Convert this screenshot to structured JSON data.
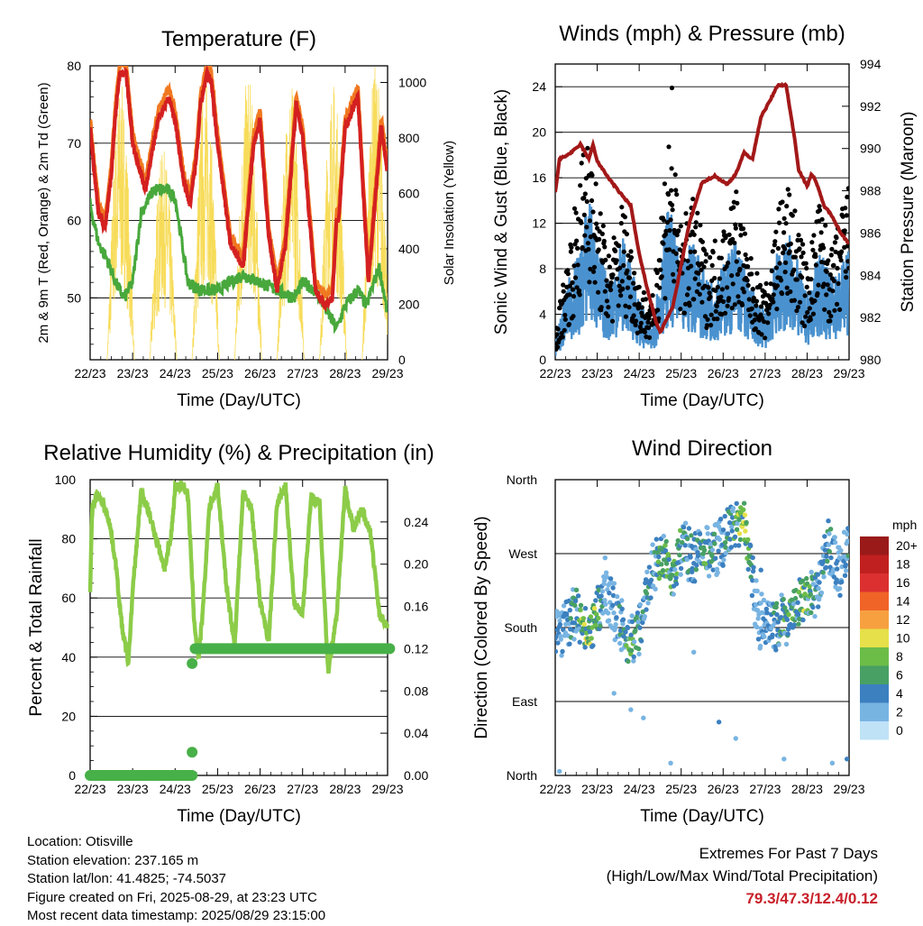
{
  "x_ticks": [
    "22/23",
    "23/23",
    "24/23",
    "25/23",
    "26/23",
    "27/23",
    "28/23",
    "29/23"
  ],
  "xlabel": "Time (Day/UTC)",
  "colors": {
    "temp2m": "#d42020",
    "temp9m": "#f07820",
    "dewpoint": "#48a83c",
    "solar": "#f7dc5a",
    "sonic": "#4a92cf",
    "gust": "#000000",
    "pressure": "#a31818",
    "rh": "#8ccc48",
    "precip": "#48b048",
    "extremes": "#c8202a"
  },
  "charts": {
    "temperature": {
      "title": "Temperature (F)",
      "ylabel": "2m & 9m T (Red, Orange) & 2m Td (Green)",
      "y2label": "Solar Insolation (Yellow)",
      "y_ticks": [
        "50",
        "60",
        "70",
        "80"
      ],
      "y2_ticks": [
        "0",
        "200",
        "400",
        "600",
        "800",
        "1000"
      ]
    },
    "winds": {
      "title": "Winds (mph) & Pressure (mb)",
      "ylabel": "Sonic Wind & Gust (Blue, Black)",
      "y2label": "Station Pressure (Maroon)",
      "y_ticks": [
        "0",
        "4",
        "8",
        "12",
        "16",
        "20",
        "24"
      ],
      "y2_ticks": [
        "980",
        "982",
        "984",
        "986",
        "988",
        "990",
        "992",
        "994"
      ]
    },
    "humidity": {
      "title": "Relative Humidity (%) & Precipitation (in)",
      "ylabel": "Percent & Total Rainfall",
      "y_ticks": [
        "0",
        "20",
        "40",
        "60",
        "80",
        "100"
      ],
      "y2_ticks": [
        "0.00",
        "0.04",
        "0.08",
        "0.12",
        "0.16",
        "0.20",
        "0.24"
      ]
    },
    "direction": {
      "title": "Wind Direction",
      "ylabel": "Direction (Colored By Speed)",
      "y_ticks": [
        "North",
        "East",
        "South",
        "West",
        "North"
      ],
      "legend_title": "mph",
      "legend_labels": [
        "20+",
        "18",
        "16",
        "14",
        "12",
        "10",
        "8",
        "6",
        "4",
        "2",
        "0"
      ],
      "legend_colors": [
        "#9a1a1a",
        "#c02020",
        "#dc3030",
        "#f06428",
        "#f7a040",
        "#e6e04a",
        "#6cbc48",
        "#48a064",
        "#3c80c0",
        "#78b4e2",
        "#bfe2f7"
      ]
    }
  },
  "chart_data": [
    {
      "type": "line",
      "title": "Temperature (F)",
      "x_ticks": [
        "22/23",
        "23/23",
        "24/23",
        "25/23",
        "26/23",
        "27/23",
        "28/23",
        "29/23"
      ],
      "ylim": [
        42,
        80
      ],
      "y2lim": [
        0,
        1060
      ],
      "series": [
        {
          "name": "2m T",
          "axis": "left",
          "x": [
            0.0,
            0.1,
            0.2,
            0.35,
            0.5,
            0.6,
            0.7,
            0.85,
            1.0,
            1.3,
            1.6,
            1.85,
            2.0,
            2.2,
            2.35,
            2.5,
            2.6,
            2.75,
            2.85,
            3.0,
            3.3,
            3.6,
            3.85,
            4.0,
            4.2,
            4.4,
            4.6,
            4.85,
            5.0,
            5.3,
            5.55,
            5.7,
            5.8,
            5.85,
            6.0,
            6.3,
            6.55,
            6.85,
            7.0
          ],
          "y": [
            72,
            66,
            61,
            59,
            66,
            74,
            79,
            79,
            70,
            64,
            73,
            76,
            73,
            65,
            62,
            68,
            75,
            79,
            78,
            70,
            57,
            54,
            70,
            73,
            58,
            51,
            57,
            75,
            71,
            51,
            49,
            50,
            60,
            60,
            72,
            76,
            52,
            72,
            66
          ]
        },
        {
          "name": "Td",
          "axis": "left",
          "x": [
            0.0,
            0.2,
            0.4,
            0.6,
            0.8,
            1.0,
            1.2,
            1.5,
            1.8,
            2.0,
            2.3,
            2.6,
            3.0,
            3.3,
            3.6,
            4.0,
            4.4,
            4.8,
            5.0,
            5.3,
            5.6,
            5.8,
            6.0,
            6.3,
            6.5,
            6.8,
            7.0
          ],
          "y": [
            62,
            57,
            55,
            52,
            50,
            52,
            61,
            64,
            64,
            63,
            52,
            51,
            51,
            52,
            53,
            52,
            51,
            50,
            52,
            51,
            48,
            46,
            49,
            51,
            49,
            54,
            48
          ]
        },
        {
          "name": "Solar",
          "axis": "right",
          "peaks_x": [
            0.72,
            1.72,
            2.72,
            3.72,
            4.72,
            5.72,
            6.72
          ],
          "peaks_y": [
            1000,
            760,
            1020,
            1030,
            1010,
            1010,
            1070
          ]
        }
      ]
    },
    {
      "type": "line",
      "title": "Winds (mph) & Pressure (mb)",
      "x_ticks": [
        "22/23",
        "23/23",
        "24/23",
        "25/23",
        "26/23",
        "27/23",
        "28/23",
        "29/23"
      ],
      "ylim": [
        0,
        26
      ],
      "y2lim": [
        980,
        994
      ],
      "series": [
        {
          "name": "Sonic Wind",
          "axis": "left",
          "x": [
            0.0,
            0.3,
            0.6,
            0.8,
            1.0,
            1.3,
            1.6,
            2.0,
            2.3,
            2.7,
            3.0,
            3.3,
            3.6,
            4.0,
            4.3,
            4.6,
            5.0,
            5.3,
            5.6,
            6.0,
            6.3,
            6.6,
            7.0
          ],
          "y": [
            1,
            5,
            7,
            11,
            7,
            5,
            8,
            4,
            2,
            10,
            6,
            8,
            5,
            6,
            8,
            5,
            3,
            7,
            8,
            4,
            7,
            5,
            7
          ]
        },
        {
          "name": "Gust",
          "axis": "left",
          "x": [
            0.0,
            0.3,
            0.6,
            0.8,
            1.0,
            1.3,
            1.6,
            2.0,
            2.3,
            2.7,
            3.0,
            3.3,
            3.6,
            4.0,
            4.3,
            4.6,
            5.0,
            5.3,
            5.6,
            6.0,
            6.3,
            6.6,
            7.0
          ],
          "y": [
            2,
            8,
            14,
            20,
            12,
            8,
            12,
            6,
            4,
            18,
            10,
            12,
            8,
            10,
            13,
            8,
            5,
            12,
            13,
            7,
            12,
            8,
            14
          ]
        },
        {
          "name": "Pressure",
          "axis": "right",
          "x": [
            0.0,
            0.1,
            0.3,
            0.5,
            0.6,
            0.8,
            0.9,
            1.0,
            1.2,
            1.5,
            1.8,
            2.0,
            2.2,
            2.4,
            2.5,
            2.8,
            3.2,
            3.5,
            3.8,
            4.1,
            4.3,
            4.5,
            4.7,
            4.9,
            5.1,
            5.3,
            5.5,
            5.7,
            5.8,
            6.0,
            6.1,
            6.2,
            6.4,
            6.6,
            6.8,
            7.0
          ],
          "y": [
            987.9,
            989.5,
            989.7,
            990.0,
            990.2,
            989.5,
            990.2,
            989.4,
            988.8,
            988.0,
            987.3,
            985.0,
            983.3,
            981.8,
            981.3,
            982.5,
            986.5,
            988.4,
            988.7,
            988.3,
            988.8,
            989.8,
            989.5,
            991.5,
            992.2,
            993.0,
            993.0,
            990.5,
            989.0,
            988.2,
            988.8,
            988.5,
            987.3,
            986.8,
            986.0,
            985.5
          ]
        }
      ]
    },
    {
      "type": "line",
      "title": "Relative Humidity (%) & Precipitation (in)",
      "x_ticks": [
        "22/23",
        "23/23",
        "24/23",
        "25/23",
        "26/23",
        "27/23",
        "28/23",
        "29/23"
      ],
      "ylim": [
        0,
        100
      ],
      "y2lim": [
        0,
        0.28
      ],
      "series": [
        {
          "name": "RH",
          "axis": "left",
          "x": [
            0.0,
            0.05,
            0.15,
            0.3,
            0.45,
            0.6,
            0.75,
            0.9,
            1.0,
            1.2,
            1.4,
            1.6,
            1.75,
            1.9,
            2.0,
            2.15,
            2.3,
            2.45,
            2.55,
            2.65,
            2.8,
            3.0,
            3.2,
            3.4,
            3.6,
            3.8,
            4.0,
            4.2,
            4.4,
            4.6,
            4.8,
            5.0,
            5.2,
            5.4,
            5.6,
            5.8,
            6.0,
            6.2,
            6.4,
            6.6,
            6.8,
            7.0
          ],
          "y": [
            63,
            90,
            95,
            92,
            86,
            72,
            50,
            38,
            62,
            96,
            88,
            78,
            70,
            80,
            97,
            99,
            95,
            52,
            39,
            55,
            90,
            98,
            65,
            44,
            96,
            90,
            59,
            45,
            92,
            98,
            58,
            55,
            94,
            92,
            35,
            54,
            97,
            83,
            90,
            82,
            55,
            50
          ]
        },
        {
          "name": "Total Rainfall",
          "axis": "right",
          "x": [
            0.0,
            2.4,
            2.4,
            2.4,
            2.45,
            7.0
          ],
          "y": [
            0.0,
            0.0,
            0.02,
            0.11,
            0.12,
            0.12
          ]
        }
      ]
    },
    {
      "type": "scatter",
      "title": "Wind Direction",
      "x_ticks": [
        "22/23",
        "23/23",
        "24/23",
        "25/23",
        "26/23",
        "27/23",
        "28/23",
        "29/23"
      ],
      "y_ticks": [
        "North",
        "East",
        "South",
        "West",
        "North"
      ],
      "ylim": [
        0,
        360
      ],
      "series": [
        {
          "name": "Direction",
          "x": [
            0.2,
            0.5,
            0.8,
            1.0,
            1.2,
            1.5,
            1.8,
            2.0,
            2.3,
            2.6,
            2.8,
            3.0,
            3.3,
            3.6,
            3.9,
            4.2,
            4.5,
            4.8,
            5.0,
            5.3,
            5.6,
            5.9,
            6.2,
            6.5,
            6.8,
            7.0
          ],
          "y": [
            180,
            200,
            170,
            195,
            230,
            185,
            160,
            180,
            250,
            270,
            240,
            280,
            265,
            270,
            280,
            300,
            310,
            200,
            175,
            185,
            195,
            215,
            225,
            280,
            250,
            290
          ],
          "speed": [
            3,
            5,
            9,
            7,
            2,
            4,
            6,
            5,
            4,
            7,
            6,
            5,
            4,
            6,
            3,
            5,
            8,
            2,
            3,
            5,
            6,
            7,
            4,
            4,
            3,
            5
          ]
        }
      ]
    }
  ],
  "info": {
    "location": "Location: Otisville",
    "elevation": "Station elevation: 237.165 m",
    "latlon": "Station lat/lon: 41.4825; -74.5037",
    "created": "Figure created on Fri, 2025-08-29, at 23:23 UTC",
    "recent": "Most recent data timestamp: 2025/08/29 23:15:00"
  },
  "extremes": {
    "line1": "Extremes For Past 7 Days",
    "line2": "(High/Low/Max Wind/Total Precipitation)",
    "values": "79.3/47.3/12.4/0.12"
  }
}
